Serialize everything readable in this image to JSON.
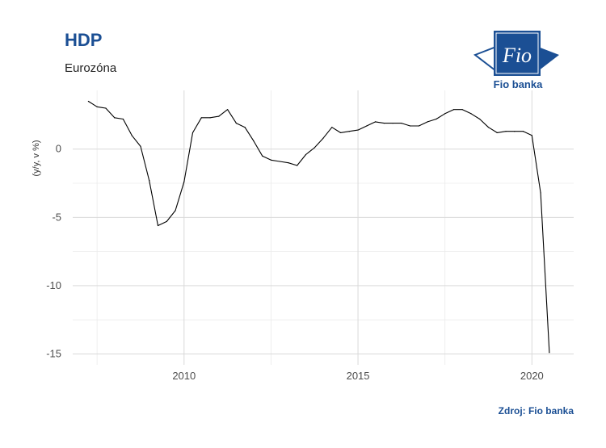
{
  "header": {
    "title": "HDP",
    "subtitle": "Eurozóna"
  },
  "logo": {
    "mark_text": "Fio",
    "name": "Fio banka"
  },
  "footer": {
    "source": "Zdroj: Fio banka"
  },
  "colors": {
    "brand": "#1b4f94",
    "line": "#000000",
    "grid": "#d9d9d9"
  },
  "chart_data": {
    "type": "line",
    "title": "HDP",
    "subtitle": "Eurozóna",
    "xlabel": "",
    "ylabel": "(y/y, v %)",
    "xlim": [
      2006.8,
      2021.2
    ],
    "ylim": [
      -15.8,
      4.3
    ],
    "x_ticks": [
      2010,
      2015,
      2020
    ],
    "y_ticks": [
      0,
      -5,
      -10,
      -15
    ],
    "grid": true,
    "legend": "none",
    "series": [
      {
        "x": [
          2007.25,
          2007.5,
          2007.75,
          2008.0,
          2008.25,
          2008.5,
          2008.75,
          2009.0,
          2009.25,
          2009.5,
          2009.75,
          2010.0,
          2010.25,
          2010.5,
          2010.75,
          2011.0,
          2011.25,
          2011.5,
          2011.75,
          2012.0,
          2012.25,
          2012.5,
          2012.75,
          2013.0,
          2013.25,
          2013.5,
          2013.75,
          2014.0,
          2014.25,
          2014.5,
          2014.75,
          2015.0,
          2015.25,
          2015.5,
          2015.75,
          2016.0,
          2016.25,
          2016.5,
          2016.75,
          2017.0,
          2017.25,
          2017.5,
          2017.75,
          2018.0,
          2018.25,
          2018.5,
          2018.75,
          2019.0,
          2019.25,
          2019.5,
          2019.75,
          2020.0,
          2020.25,
          2020.5
        ],
        "values": [
          3.5,
          3.1,
          3.0,
          2.3,
          2.2,
          1.0,
          0.2,
          -2.3,
          -5.6,
          -5.3,
          -4.5,
          -2.4,
          1.2,
          2.3,
          2.3,
          2.4,
          2.9,
          1.9,
          1.6,
          0.6,
          -0.5,
          -0.8,
          -0.9,
          -1.0,
          -1.2,
          -0.4,
          0.1,
          0.8,
          1.6,
          1.2,
          1.3,
          1.4,
          1.7,
          2.0,
          1.9,
          1.9,
          1.9,
          1.7,
          1.7,
          2.0,
          2.2,
          2.6,
          2.9,
          2.9,
          2.6,
          2.2,
          1.6,
          1.2,
          1.3,
          1.3,
          1.3,
          1.0,
          -3.2,
          -14.9
        ]
      }
    ]
  }
}
